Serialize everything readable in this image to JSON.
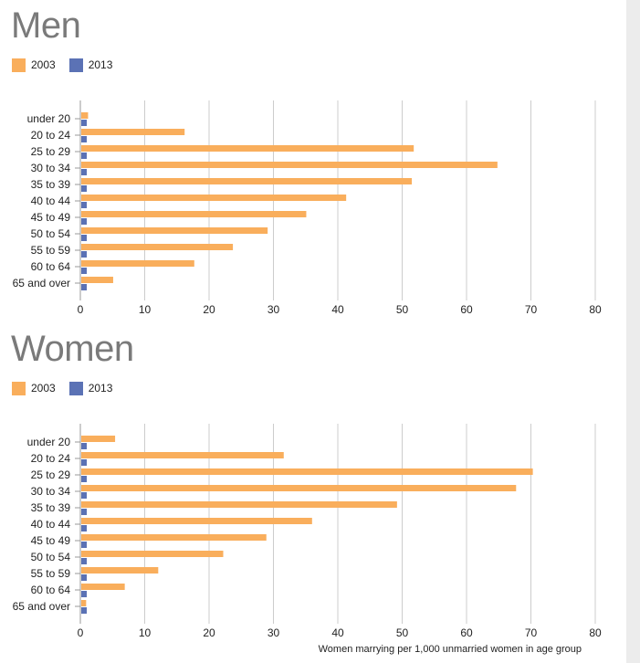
{
  "colors": {
    "series_2003": "#f9ae5c",
    "series_2013": "#5b72b5",
    "grid": "#cccccc",
    "title": "#7a7a7a"
  },
  "chart_data": [
    {
      "type": "bar",
      "orientation": "horizontal",
      "title": "Men",
      "xlabel": "",
      "xlim": [
        0,
        80
      ],
      "xticks": [
        0,
        10,
        20,
        30,
        40,
        50,
        60,
        70,
        80
      ],
      "grid": true,
      "legend": "top-left",
      "categories": [
        "under 20",
        "20 to 24",
        "25 to 29",
        "30 to 34",
        "35 to 39",
        "40 to 44",
        "45 to 49",
        "50 to 54",
        "55 to 59",
        "60 to 64",
        "65 and over"
      ],
      "series": [
        {
          "name": "2003",
          "color": "#f9ae5c",
          "values": [
            1.2,
            16.2,
            51.8,
            64.8,
            51.5,
            41.3,
            35.1,
            29.1,
            23.7,
            17.7,
            5.1
          ]
        },
        {
          "name": "2013",
          "color": "#5b72b5",
          "values": [
            1,
            1,
            1,
            1,
            1,
            1,
            1,
            1,
            1,
            1,
            1
          ]
        }
      ]
    },
    {
      "type": "bar",
      "orientation": "horizontal",
      "title": "Women",
      "xlabel": "Women marrying per 1,000 unmarried women in age group",
      "xlim": [
        0,
        80
      ],
      "xticks": [
        0,
        10,
        20,
        30,
        40,
        50,
        60,
        70,
        80
      ],
      "grid": true,
      "legend": "top-left",
      "categories": [
        "under 20",
        "20 to 24",
        "25 to 29",
        "30 to 34",
        "35 to 39",
        "40 to 44",
        "45 to 49",
        "50 to 54",
        "55 to 59",
        "60 to 64",
        "65 and over"
      ],
      "series": [
        {
          "name": "2003",
          "color": "#f9ae5c",
          "values": [
            5.4,
            31.6,
            70.3,
            67.7,
            49.2,
            36.0,
            28.9,
            22.2,
            12.1,
            6.9,
            0.9
          ]
        },
        {
          "name": "2013",
          "color": "#5b72b5",
          "values": [
            1,
            1,
            1,
            1,
            1,
            1,
            1,
            1,
            1,
            1,
            1
          ]
        }
      ]
    }
  ]
}
